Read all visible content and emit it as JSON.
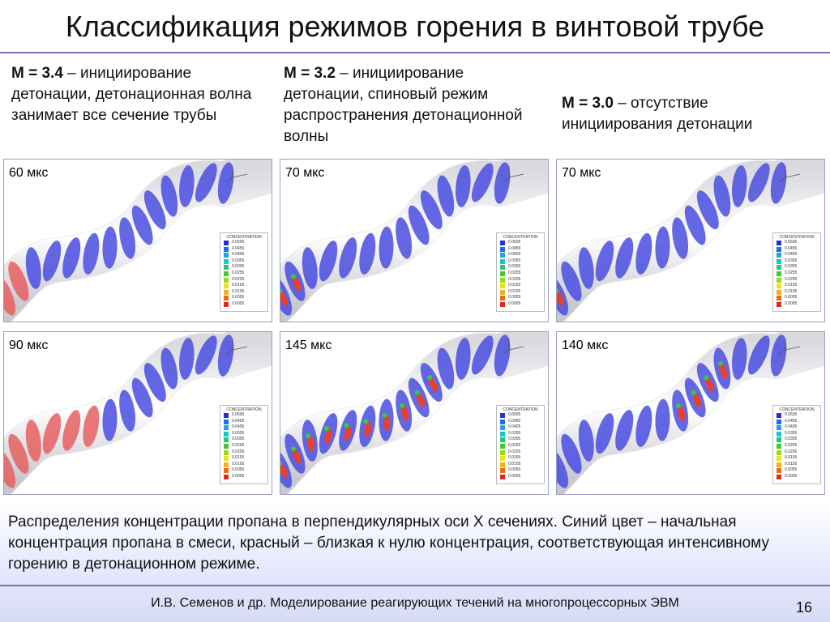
{
  "title": "Классификация режимов горения в винтовой трубе",
  "cases": [
    {
      "mach": "M = 3.4",
      "rest": " – инициирование детонации, детонационная волна занимает все сечение трубы"
    },
    {
      "mach": "M = 3.2",
      "rest": " – инициирование детонации, спиновый режим распространения детонационной волны"
    },
    {
      "mach": "M = 3.0",
      "rest": " – отсутствие инициирования детонации"
    }
  ],
  "panels": [
    {
      "time": "60 мкс"
    },
    {
      "time": "70 мкс"
    },
    {
      "time": "70 мкс"
    },
    {
      "time": "90 мкс"
    },
    {
      "time": "145 мкс"
    },
    {
      "time": "140 мкс"
    }
  ],
  "legend": {
    "title": "CONCENTRATION",
    "values": [
      "0.0505",
      "0.0455",
      "0.0405",
      "0.0355",
      "0.0305",
      "0.0255",
      "0.0205",
      "0.0155",
      "0.0105",
      "0.0055",
      "0.0005"
    ],
    "colors": [
      "#1e32d6",
      "#1f6ee6",
      "#18a8e8",
      "#16c9c0",
      "#20c878",
      "#3ccc30",
      "#9ad81e",
      "#e6e41c",
      "#f0b418",
      "#ee6a1a",
      "#e02a1a"
    ]
  },
  "caption": "Распределения концентрации пропана в перпендикулярных оси X сечениях. Синий цвет – начальная концентрация пропана в смеси, красный – близкая к нулю концентрация, соответствующая интенсивному горению в детонационном режиме.",
  "footer": "И.В. Семенов и др. Моделирование реагирующих течений на многопроцессорных ЭВМ",
  "page_number": "16"
}
